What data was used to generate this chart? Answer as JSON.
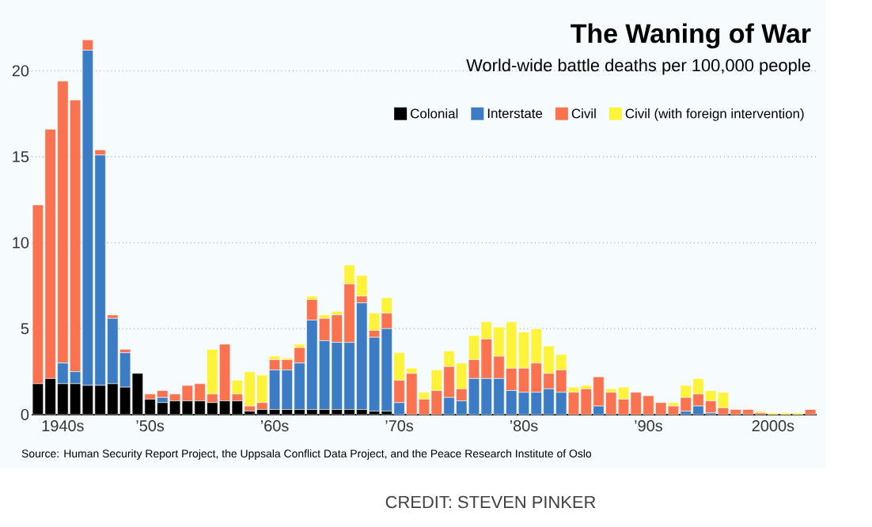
{
  "chart_data": {
    "type": "bar",
    "stacked": true,
    "title": "The Waning of War",
    "subtitle": "World-wide battle deaths per 100,000 people",
    "categories": [
      null,
      null,
      "1940s",
      null,
      null,
      null,
      null,
      null,
      null,
      "’50s",
      null,
      null,
      null,
      null,
      null,
      null,
      null,
      null,
      null,
      "’60s",
      null,
      null,
      null,
      null,
      null,
      null,
      null,
      null,
      null,
      "’70s",
      null,
      null,
      null,
      null,
      null,
      null,
      null,
      null,
      null,
      "’80s",
      null,
      null,
      null,
      null,
      null,
      null,
      null,
      null,
      null,
      "’90s",
      null,
      null,
      null,
      null,
      null,
      null,
      null,
      null,
      null,
      "2000s",
      null,
      null,
      null
    ],
    "series": [
      {
        "name": "Colonial",
        "color": "#000000",
        "values": [
          1.8,
          2.1,
          1.8,
          1.8,
          1.7,
          1.7,
          1.8,
          1.6,
          2.4,
          0.9,
          0.7,
          0.8,
          0.8,
          0.8,
          0.7,
          0.8,
          0.8,
          0.2,
          0.3,
          0.3,
          0.3,
          0.3,
          0.3,
          0.3,
          0.3,
          0.3,
          0.3,
          0.2,
          0.2,
          0,
          0,
          0,
          0,
          0,
          0,
          0,
          0,
          0,
          0,
          0,
          0,
          0,
          0,
          0,
          0,
          0,
          0,
          0,
          0,
          0,
          0,
          0,
          0,
          0,
          0,
          0,
          0,
          0,
          0,
          0,
          0,
          0,
          0
        ]
      },
      {
        "name": "Interstate",
        "color": "#3b7cc4",
        "values": [
          0,
          0,
          1.2,
          0.7,
          19.5,
          13.4,
          3.8,
          2.0,
          0,
          0,
          0.3,
          0,
          0,
          0,
          0,
          0,
          0,
          0,
          0,
          2.3,
          2.3,
          2.7,
          5.2,
          4.0,
          3.9,
          3.9,
          6.2,
          4.3,
          4.8,
          0.7,
          0,
          0,
          0,
          1.0,
          0.8,
          2.1,
          2.1,
          2.1,
          1.4,
          1.3,
          1.3,
          1.5,
          1.3,
          0,
          0,
          0.5,
          0,
          0,
          0,
          0,
          0,
          0,
          0.2,
          0.5,
          0.1,
          0,
          0,
          0,
          0,
          0,
          0,
          0,
          0
        ]
      },
      {
        "name": "Civil",
        "color": "#fa7350",
        "values": [
          10.4,
          14.5,
          16.4,
          15.8,
          0.6,
          0.3,
          0.2,
          0.2,
          0,
          0.3,
          0.4,
          0.4,
          0.9,
          1.0,
          0.5,
          3.3,
          0.4,
          0.3,
          0.4,
          0.6,
          0.6,
          0.9,
          1.2,
          1.3,
          1.6,
          3.4,
          0.4,
          0.4,
          0.9,
          1.3,
          2.4,
          0.9,
          1.4,
          1.8,
          0.7,
          1.1,
          2.3,
          1.3,
          1.3,
          1.4,
          1.7,
          0.9,
          1.3,
          1.3,
          1.5,
          1.7,
          1.3,
          0.9,
          1.3,
          1.1,
          0.7,
          0.5,
          0.8,
          0.7,
          0.7,
          0.4,
          0.3,
          0.3,
          0.1,
          0,
          0,
          0,
          0.3
        ]
      },
      {
        "name": "Civil (with foreign intervention)",
        "color": "#fdf33a",
        "values": [
          0,
          0,
          0,
          0,
          0,
          0,
          0,
          0,
          0,
          0,
          0,
          0,
          0,
          0,
          2.6,
          0,
          0.8,
          2.0,
          1.6,
          0.2,
          0.1,
          0.2,
          0.2,
          0.2,
          0.2,
          1.1,
          1.2,
          1.0,
          0.9,
          1.6,
          0.3,
          0.4,
          1.2,
          0.9,
          1.5,
          1.4,
          1.0,
          1.7,
          2.7,
          2.1,
          2.0,
          1.6,
          0.9,
          0.3,
          0.2,
          0,
          0.2,
          0.7,
          0,
          0,
          0,
          0.2,
          0.7,
          0.9,
          0.6,
          0.9,
          0,
          0,
          0.1,
          0.1,
          0.1,
          0.1,
          0
        ]
      }
    ],
    "ylim": [
      0,
      22
    ],
    "yticks": [
      0,
      5,
      10,
      15,
      20
    ],
    "grid": "y",
    "legend": "top right",
    "annotations": [
      "Source: Human Security Report Project, the Uppsala Conflict Data Project, and the Peace Research Institute of Oslo",
      "CREDIT: STEVEN PINKER"
    ]
  }
}
